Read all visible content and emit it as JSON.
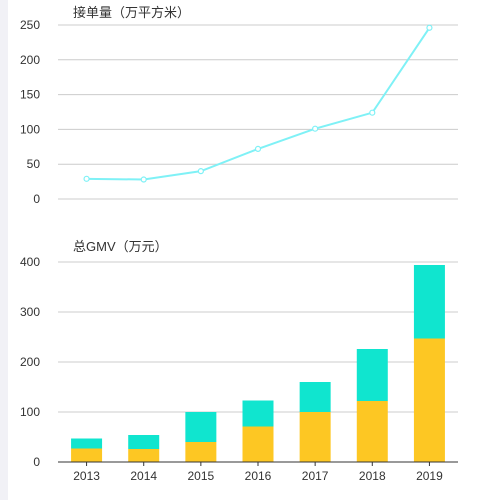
{
  "charts": [
    {
      "type": "line",
      "title": "接单量（万平方米）",
      "y_ticks": [
        "250",
        "200",
        "150",
        "100",
        "50",
        "0"
      ],
      "ylim": [
        0,
        250
      ],
      "color": "#7ff1f6"
    },
    {
      "type": "bar",
      "title": "总GMV（万元）",
      "y_ticks": [
        "400",
        "300",
        "200",
        "100",
        "0"
      ],
      "ylim": [
        0,
        400
      ],
      "x_ticks": [
        "2013",
        "2014",
        "2015",
        "2016",
        "2017",
        "2018",
        "2019"
      ],
      "colors": {
        "lower": "#fdc723",
        "upper": "#10e5cf"
      }
    }
  ],
  "chart_data": [
    {
      "type": "line",
      "title": "接单量（万平方米）",
      "categories": [
        "2013",
        "2014",
        "2015",
        "2016",
        "2017",
        "2018",
        "2019"
      ],
      "values": [
        29,
        28,
        40,
        72,
        101,
        124,
        246
      ],
      "ylim": [
        0,
        250
      ],
      "grid": true
    },
    {
      "type": "bar",
      "stacked": true,
      "title": "总GMV（万元）",
      "categories": [
        "2013",
        "2014",
        "2015",
        "2016",
        "2017",
        "2018",
        "2019"
      ],
      "series": [
        {
          "values": [
            27,
            26,
            40,
            71,
            100,
            122,
            247
          ]
        },
        {
          "values": [
            20,
            28,
            60,
            52,
            60,
            104,
            147
          ]
        }
      ],
      "ylim": [
        0,
        400
      ],
      "grid": true
    }
  ]
}
